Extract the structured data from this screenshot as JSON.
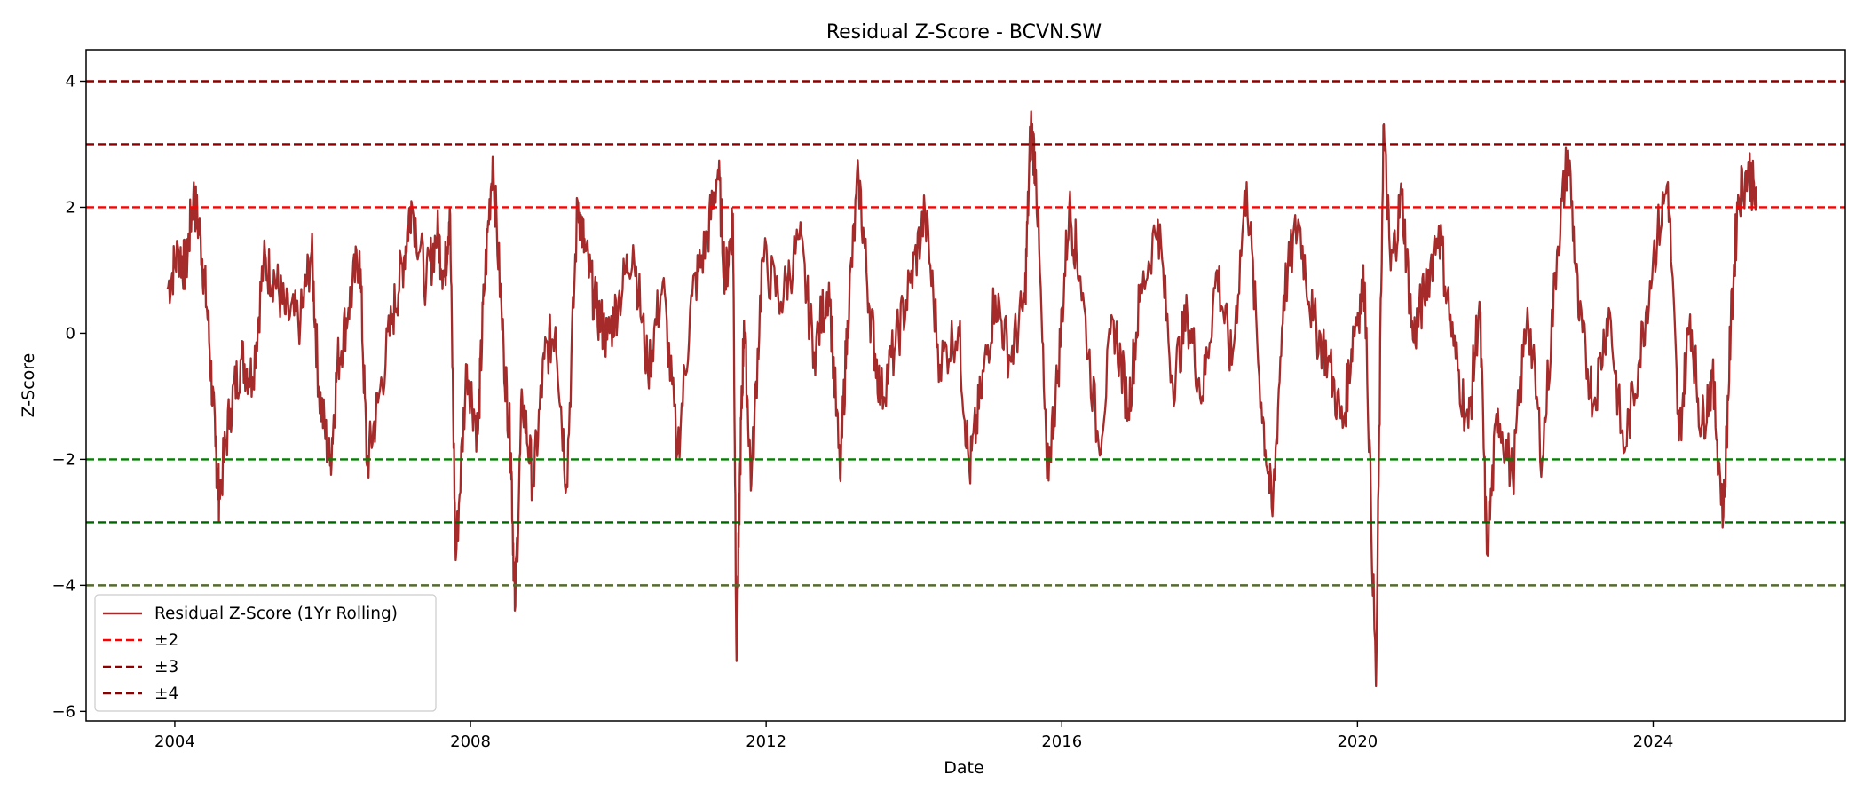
{
  "chart_data": {
    "type": "line",
    "title": "Residual Z-Score - BCVN.SW",
    "xlabel": "Date",
    "ylabel": "Z-Score",
    "xlim": [
      2002.8,
      2026.6
    ],
    "ylim": [
      -6.15,
      4.5
    ],
    "x_ticks": [
      "2004",
      "2008",
      "2012",
      "2016",
      "2020",
      "2024"
    ],
    "y_ticks": [
      "4",
      "2",
      "0",
      "−2",
      "−4",
      "−6"
    ],
    "y_tick_values": [
      4,
      2,
      0,
      -2,
      -4,
      -6
    ],
    "grid": false,
    "legend_position": "lower-left",
    "series": [
      {
        "name": "Residual Z-Score (1Yr Rolling)",
        "color": "#a52a2a",
        "x": [
          2003.9,
          2004.05,
          2004.15,
          2004.25,
          2004.35,
          2004.45,
          2004.55,
          2004.6,
          2004.75,
          2004.9,
          2005.05,
          2005.2,
          2005.35,
          2005.5,
          2005.7,
          2005.85,
          2005.95,
          2006.1,
          2006.2,
          2006.35,
          2006.5,
          2006.6,
          2006.75,
          2006.95,
          2007.1,
          2007.2,
          2007.4,
          2007.55,
          2007.65,
          2007.72,
          2007.8,
          2007.95,
          2008.1,
          2008.18,
          2008.3,
          2008.45,
          2008.55,
          2008.6,
          2008.7,
          2008.85,
          2009.0,
          2009.15,
          2009.3,
          2009.45,
          2009.55,
          2009.7,
          2009.85,
          2010.0,
          2010.2,
          2010.4,
          2010.6,
          2010.8,
          2011.0,
          2011.2,
          2011.35,
          2011.45,
          2011.55,
          2011.6,
          2011.65,
          2011.7,
          2011.8,
          2011.95,
          2012.2,
          2012.45,
          2012.65,
          2012.85,
          2013.0,
          2013.1,
          2013.25,
          2013.4,
          2013.55,
          2013.75,
          2013.95,
          2014.15,
          2014.35,
          2014.6,
          2014.75,
          2014.9,
          2015.1,
          2015.3,
          2015.5,
          2015.58,
          2015.65,
          2015.8,
          2015.95,
          2016.1,
          2016.25,
          2016.5,
          2016.7,
          2016.9,
          2017.05,
          2017.3,
          2017.5,
          2017.7,
          2017.9,
          2018.1,
          2018.3,
          2018.5,
          2018.7,
          2018.85,
          2019.0,
          2019.2,
          2019.4,
          2019.6,
          2019.8,
          2019.95,
          2020.1,
          2020.25,
          2020.35,
          2020.45,
          2020.6,
          2020.75,
          2020.9,
          2021.1,
          2021.3,
          2021.5,
          2021.65,
          2021.75,
          2021.9,
          2022.1,
          2022.3,
          2022.5,
          2022.7,
          2022.85,
          2023.0,
          2023.2,
          2023.4,
          2023.6,
          2023.8,
          2024.0,
          2024.2,
          2024.35,
          2024.5,
          2024.65,
          2024.8,
          2024.95,
          2025.05,
          2025.15,
          2025.3,
          2025.4
        ],
        "values": [
          0.7,
          1.3,
          1.0,
          2.2,
          1.5,
          0.2,
          -1.8,
          -2.6,
          -1.2,
          -0.4,
          -0.7,
          1.1,
          0.9,
          0.3,
          0.2,
          1.3,
          -0.9,
          -2.1,
          -0.5,
          0.4,
          1.3,
          -2.1,
          -1.1,
          0.3,
          1.2,
          2.1,
          0.8,
          1.6,
          0.9,
          2.0,
          -3.6,
          -0.5,
          -1.6,
          0.6,
          2.8,
          -0.3,
          -1.9,
          -4.4,
          -1.0,
          -2.4,
          -0.4,
          0.1,
          -2.4,
          2.1,
          1.3,
          0.4,
          -0.1,
          0.5,
          1.4,
          -0.6,
          0.8,
          -1.9,
          0.6,
          1.5,
          2.6,
          0.8,
          1.9,
          -5.2,
          -2.0,
          0.2,
          -2.4,
          1.2,
          0.5,
          1.5,
          -0.3,
          0.8,
          -2.3,
          0.2,
          2.5,
          0.4,
          -1.0,
          -0.2,
          0.8,
          1.9,
          -0.5,
          0.1,
          -2.2,
          -1.0,
          0.6,
          -0.4,
          0.5,
          3.3,
          2.6,
          -2.3,
          -0.6,
          2.0,
          0.9,
          -1.8,
          0.2,
          -1.2,
          0.5,
          1.8,
          -0.8,
          0.3,
          -1.0,
          1.0,
          -0.5,
          2.4,
          -1.1,
          -2.9,
          0.6,
          1.8,
          0.2,
          -0.4,
          -1.5,
          0.1,
          0.8,
          -5.6,
          3.3,
          1.0,
          2.2,
          -0.1,
          0.6,
          1.7,
          -0.2,
          -1.5,
          0.5,
          -3.5,
          -1.2,
          -2.3,
          0.4,
          -2.0,
          1.3,
          2.9,
          0.2,
          -1.1,
          0.4,
          -1.9,
          -0.5,
          1.2,
          2.4,
          -1.7,
          0.3,
          -1.5,
          -0.7,
          -2.9,
          0.1,
          2.2,
          2.6,
          2.0
        ]
      }
    ],
    "reference_lines": [
      {
        "name": "±2",
        "values": [
          2,
          -2
        ],
        "colors": [
          "#ff0000",
          "#008000"
        ]
      },
      {
        "name": "±3",
        "values": [
          3,
          -3
        ],
        "colors": [
          "#8b0000",
          "#006400"
        ]
      },
      {
        "name": "±4",
        "values": [
          4,
          -4
        ],
        "colors": [
          "#8b0000",
          "#556b2f"
        ]
      }
    ]
  }
}
